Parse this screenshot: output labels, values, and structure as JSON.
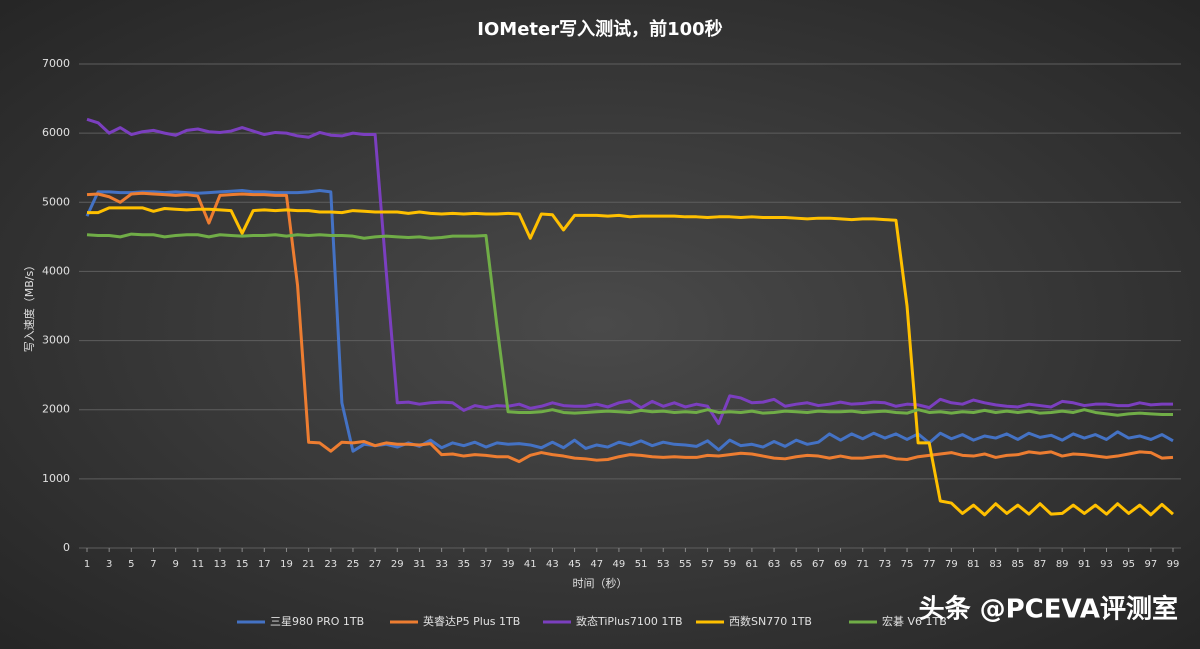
{
  "chart_data": {
    "type": "line",
    "title": "IOMeter写入测试，前100秒",
    "x_label": "时间（秒）",
    "y_label": "写入速度（MB/s）",
    "watermark": "头条 @PCEVA评测室",
    "x": [
      1,
      2,
      3,
      4,
      5,
      6,
      7,
      8,
      9,
      10,
      11,
      12,
      13,
      14,
      15,
      16,
      17,
      18,
      19,
      20,
      21,
      22,
      23,
      24,
      25,
      26,
      27,
      28,
      29,
      30,
      31,
      32,
      33,
      34,
      35,
      36,
      37,
      38,
      39,
      40,
      41,
      42,
      43,
      44,
      45,
      46,
      47,
      48,
      49,
      50,
      51,
      52,
      53,
      54,
      55,
      56,
      57,
      58,
      59,
      60,
      61,
      62,
      63,
      64,
      65,
      66,
      67,
      68,
      69,
      70,
      71,
      72,
      73,
      74,
      75,
      76,
      77,
      78,
      79,
      80,
      81,
      82,
      83,
      84,
      85,
      86,
      87,
      88,
      89,
      90,
      91,
      92,
      93,
      94,
      95,
      96,
      97,
      98,
      99
    ],
    "xlim": [
      1,
      99
    ],
    "xticks": [
      1,
      3,
      5,
      7,
      9,
      11,
      13,
      15,
      17,
      19,
      21,
      23,
      25,
      27,
      29,
      31,
      33,
      35,
      37,
      39,
      41,
      43,
      45,
      47,
      49,
      51,
      53,
      55,
      57,
      59,
      61,
      63,
      65,
      67,
      69,
      71,
      73,
      75,
      77,
      79,
      81,
      83,
      85,
      87,
      89,
      91,
      93,
      95,
      97,
      99
    ],
    "ylim": [
      0,
      7000
    ],
    "yticks": [
      0,
      1000,
      2000,
      3000,
      4000,
      5000,
      6000,
      7000
    ],
    "grid": true,
    "legend": "bottom",
    "series": [
      {
        "name": "三星980 PRO 1TB",
        "color": "#4472c4",
        "values": [
          4800,
          5150,
          5150,
          5140,
          5140,
          5150,
          5150,
          5140,
          5150,
          5140,
          5130,
          5140,
          5150,
          5160,
          5170,
          5150,
          5150,
          5140,
          5140,
          5140,
          5150,
          5170,
          5150,
          2100,
          1400,
          1500,
          1480,
          1500,
          1460,
          1520,
          1470,
          1560,
          1450,
          1520,
          1480,
          1530,
          1460,
          1520,
          1500,
          1510,
          1490,
          1450,
          1530,
          1450,
          1560,
          1440,
          1490,
          1460,
          1530,
          1490,
          1550,
          1480,
          1530,
          1500,
          1490,
          1470,
          1550,
          1420,
          1560,
          1480,
          1500,
          1460,
          1540,
          1470,
          1560,
          1500,
          1530,
          1650,
          1560,
          1650,
          1580,
          1660,
          1590,
          1650,
          1570,
          1650,
          1520,
          1660,
          1580,
          1640,
          1560,
          1620,
          1590,
          1650,
          1570,
          1660,
          1600,
          1630,
          1560,
          1650,
          1590,
          1640,
          1570,
          1680,
          1590,
          1620,
          1570,
          1640,
          1550
        ]
      },
      {
        "name": "英睿达P5 Plus 1TB",
        "color": "#ed7d31",
        "values": [
          5110,
          5120,
          5080,
          5000,
          5120,
          5130,
          5120,
          5110,
          5100,
          5110,
          5090,
          4700,
          5100,
          5110,
          5120,
          5110,
          5110,
          5100,
          5100,
          3800,
          1530,
          1520,
          1400,
          1530,
          1520,
          1540,
          1480,
          1520,
          1500,
          1500,
          1490,
          1510,
          1350,
          1360,
          1330,
          1350,
          1340,
          1320,
          1320,
          1250,
          1340,
          1380,
          1350,
          1330,
          1300,
          1290,
          1270,
          1280,
          1320,
          1350,
          1340,
          1320,
          1310,
          1320,
          1310,
          1310,
          1340,
          1330,
          1350,
          1370,
          1360,
          1330,
          1300,
          1290,
          1320,
          1340,
          1330,
          1300,
          1330,
          1300,
          1300,
          1320,
          1330,
          1290,
          1280,
          1320,
          1340,
          1360,
          1380,
          1340,
          1330,
          1360,
          1310,
          1340,
          1350,
          1390,
          1370,
          1390,
          1330,
          1360,
          1350,
          1330,
          1310,
          1330,
          1360,
          1390,
          1380,
          1300,
          1310
        ]
      },
      {
        "name": "致态TiPlus7100 1TB",
        "color": "#7b3fbf",
        "values": [
          6200,
          6150,
          6000,
          6080,
          5980,
          6020,
          6040,
          6000,
          5970,
          6040,
          6060,
          6020,
          6010,
          6030,
          6080,
          6030,
          5980,
          6010,
          6000,
          5960,
          5940,
          6010,
          5970,
          5960,
          6000,
          5980,
          5980,
          4000,
          2100,
          2110,
          2080,
          2100,
          2110,
          2100,
          1990,
          2060,
          2030,
          2060,
          2050,
          2080,
          2020,
          2050,
          2100,
          2060,
          2050,
          2050,
          2080,
          2040,
          2100,
          2130,
          2030,
          2120,
          2050,
          2100,
          2040,
          2080,
          2050,
          1800,
          2200,
          2170,
          2100,
          2110,
          2150,
          2050,
          2080,
          2100,
          2060,
          2080,
          2110,
          2080,
          2090,
          2110,
          2100,
          2050,
          2080,
          2070,
          2030,
          2150,
          2100,
          2080,
          2140,
          2100,
          2070,
          2050,
          2040,
          2080,
          2060,
          2040,
          2120,
          2100,
          2060,
          2080,
          2080,
          2060,
          2060,
          2100,
          2070,
          2080,
          2080
        ]
      },
      {
        "name": "西数SN770 1TB",
        "color": "#ffc000",
        "values": [
          4850,
          4850,
          4920,
          4920,
          4920,
          4920,
          4870,
          4910,
          4900,
          4890,
          4900,
          4900,
          4890,
          4880,
          4550,
          4880,
          4890,
          4880,
          4890,
          4880,
          4880,
          4860,
          4860,
          4850,
          4880,
          4870,
          4860,
          4860,
          4860,
          4840,
          4860,
          4840,
          4830,
          4840,
          4830,
          4840,
          4830,
          4830,
          4840,
          4830,
          4480,
          4830,
          4820,
          4600,
          4810,
          4810,
          4810,
          4800,
          4810,
          4790,
          4800,
          4800,
          4800,
          4800,
          4790,
          4790,
          4780,
          4790,
          4790,
          4780,
          4790,
          4780,
          4780,
          4780,
          4770,
          4760,
          4770,
          4770,
          4760,
          4750,
          4760,
          4760,
          4750,
          4740,
          3500,
          1520,
          1520,
          680,
          650,
          500,
          620,
          480,
          640,
          500,
          620,
          490,
          640,
          490,
          500,
          620,
          500,
          620,
          490,
          640,
          500,
          620,
          480,
          630,
          490
        ]
      },
      {
        "name": "宏碁 V6 1TB",
        "color": "#70ad47",
        "values": [
          4530,
          4520,
          4520,
          4500,
          4540,
          4530,
          4530,
          4500,
          4520,
          4530,
          4530,
          4500,
          4530,
          4520,
          4510,
          4520,
          4520,
          4530,
          4510,
          4530,
          4520,
          4530,
          4520,
          4520,
          4510,
          4480,
          4500,
          4510,
          4500,
          4490,
          4500,
          4480,
          4490,
          4510,
          4510,
          4510,
          4520,
          3200,
          1970,
          1960,
          1960,
          1970,
          2000,
          1960,
          1950,
          1960,
          1970,
          1980,
          1970,
          1960,
          1990,
          1970,
          1980,
          1960,
          1970,
          1960,
          2000,
          1960,
          1970,
          1960,
          1980,
          1950,
          1960,
          1980,
          1970,
          1960,
          1980,
          1970,
          1970,
          1980,
          1960,
          1970,
          1980,
          1960,
          1950,
          2000,
          1960,
          1970,
          1950,
          1970,
          1960,
          1990,
          1960,
          1980,
          1960,
          1980,
          1950,
          1960,
          1980,
          1960,
          2000,
          1960,
          1940,
          1920,
          1940,
          1950,
          1940,
          1930,
          1930
        ]
      }
    ]
  }
}
